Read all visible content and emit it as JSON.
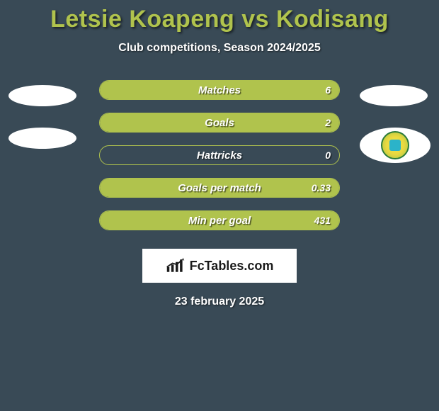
{
  "title": "Letsie Koapeng vs Kodisang",
  "subtitle": "Club competitions, Season 2024/2025",
  "date": "23 february 2025",
  "branding": {
    "text": "FcTables.com"
  },
  "colors": {
    "background": "#394a56",
    "accent": "#b0c34d",
    "text": "#ffffff",
    "barBorder": "#b0c34d",
    "branding_bg": "#ffffff"
  },
  "bars": [
    {
      "label": "Matches",
      "right_value": "6",
      "fill_pct": 100,
      "fill_color": "#b0c34d"
    },
    {
      "label": "Goals",
      "right_value": "2",
      "fill_pct": 100,
      "fill_color": "#b0c34d"
    },
    {
      "label": "Hattricks",
      "right_value": "0",
      "fill_pct": 0,
      "fill_color": "#b0c34d"
    },
    {
      "label": "Goals per match",
      "right_value": "0.33",
      "fill_pct": 100,
      "fill_color": "#b0c34d"
    },
    {
      "label": "Min per goal",
      "right_value": "431",
      "fill_pct": 100,
      "fill_color": "#b0c34d"
    }
  ],
  "left_badges": [
    {
      "type": "blank"
    },
    {
      "type": "blank"
    }
  ],
  "right_badges": [
    {
      "type": "blank"
    },
    {
      "type": "team"
    }
  ]
}
